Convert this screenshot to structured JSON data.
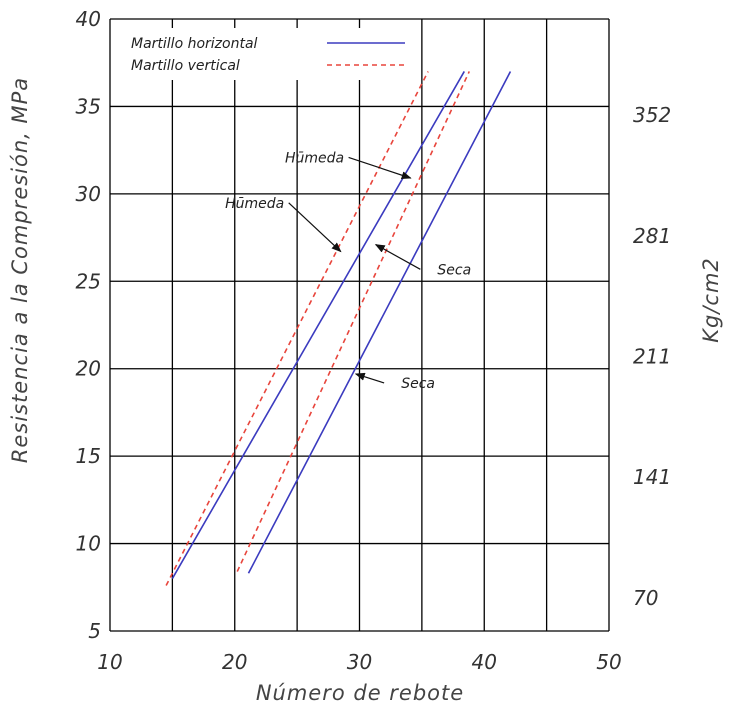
{
  "chart_data": {
    "type": "line",
    "title": "",
    "xlabel": "Número de rebote",
    "ylabel": "Resistencia a la Compresión, MPa",
    "y2label": "Kg/cm2",
    "xlim": [
      10,
      50
    ],
    "ylim": [
      5,
      40
    ],
    "x_ticks": [
      "10",
      "20",
      "30",
      "40",
      "50"
    ],
    "y_ticks": [
      "5",
      "10",
      "15",
      "20",
      "25",
      "30",
      "35",
      "40"
    ],
    "y2_ticks": [
      {
        "value": 34.5,
        "label": "352"
      },
      {
        "value": 27.6,
        "label": "281"
      },
      {
        "value": 20.7,
        "label": "211"
      },
      {
        "value": 13.8,
        "label": "141"
      },
      {
        "value": 6.9,
        "label": "70"
      }
    ],
    "grid": true,
    "legend": {
      "position": "top-left",
      "entries": [
        {
          "label": "Martillo  horizontal",
          "style": "solid",
          "color": "#3b3bbf"
        },
        {
          "label": "Martillo  vertical",
          "style": "dashed",
          "color": "#e8453c"
        }
      ]
    },
    "series": [
      {
        "style": "solid",
        "color": "#3b3bbf",
        "x": [
          15,
          38.4
        ],
        "y": [
          8,
          37
        ]
      },
      {
        "style": "solid",
        "color": "#3b3bbf",
        "x": [
          21.1,
          42.1
        ],
        "y": [
          8.3,
          37
        ]
      },
      {
        "style": "dashed",
        "color": "#e8453c",
        "x": [
          14.5,
          35.5
        ],
        "y": [
          7.6,
          37
        ]
      },
      {
        "style": "dashed",
        "color": "#e8453c",
        "x": [
          20.2,
          38.8
        ],
        "y": [
          8.4,
          37
        ]
      }
    ],
    "annotations": [
      {
        "text": "Hūmeda",
        "x": 21.6,
        "y": 29.2,
        "arrow_to": [
          28.5,
          26.7
        ]
      },
      {
        "text": "Hūmeda",
        "x": 26.4,
        "y": 31.8,
        "arrow_to": [
          34.1,
          30.9
        ]
      },
      {
        "text": "Seca",
        "x": 37.6,
        "y": 25.4,
        "arrow_to": [
          31.3,
          27.1
        ]
      },
      {
        "text": "Seca",
        "x": 34.7,
        "y": 18.9,
        "arrow_to": [
          29.7,
          19.7
        ]
      }
    ]
  }
}
